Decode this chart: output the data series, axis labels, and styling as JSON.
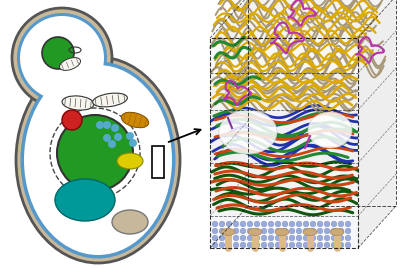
{
  "fig_width": 4.0,
  "fig_height": 2.68,
  "dpi": 100,
  "bg_color": "#ffffff",
  "cell": {
    "outer_color": "#c8b89a",
    "outer_edge": "#666666",
    "inner_color": "#5599cc",
    "cytoplasm_color": "#ffffff",
    "nucleus_color": "#229922",
    "vacuole_color": "#009999",
    "red_dot_color": "#cc2222",
    "yellow_dot_color": "#ddcc00",
    "orange_mito_color": "#cc8800",
    "cyan_dot_color": "#55aacc",
    "mito_edge": "#333333"
  },
  "fiber_colors": {
    "tan": "#a89878",
    "yellow": "#ddaa00",
    "magenta": "#bb33aa",
    "green": "#228833",
    "dark_green": "#115511",
    "blue": "#2233aa",
    "orange": "#cc4411",
    "light_green": "#66aa88",
    "purple": "#8833aa",
    "pink": "#ffccbb"
  }
}
